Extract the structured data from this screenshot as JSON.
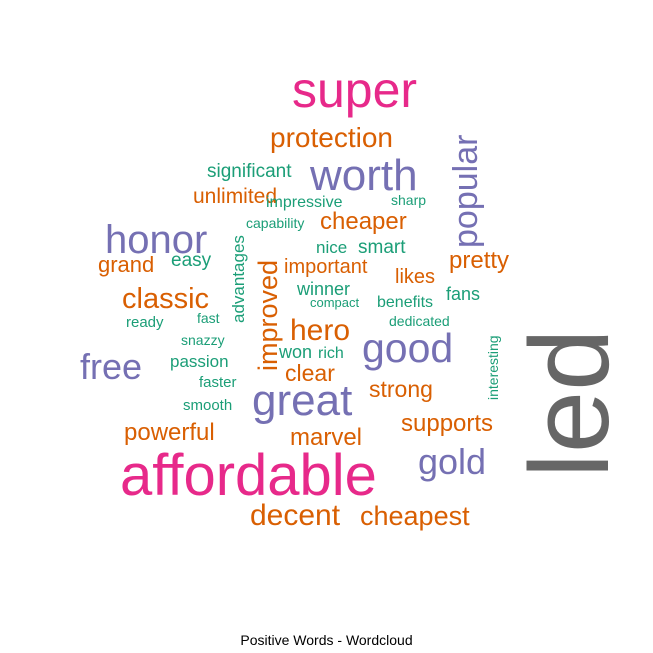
{
  "chart_data": {
    "type": "wordcloud",
    "caption": "Positive Words - Wordcloud",
    "palette": {
      "magenta": "#E7298A",
      "purple": "#7570B3",
      "orange": "#D95F02",
      "teal": "#1B9E77",
      "gray": "#666666"
    },
    "words": [
      {
        "text": "led",
        "color": "gray"
      },
      {
        "text": "affordable",
        "color": "magenta"
      },
      {
        "text": "super",
        "color": "magenta"
      },
      {
        "text": "great",
        "color": "purple"
      },
      {
        "text": "good",
        "color": "purple"
      },
      {
        "text": "worth",
        "color": "purple"
      },
      {
        "text": "honor",
        "color": "purple"
      },
      {
        "text": "gold",
        "color": "purple"
      },
      {
        "text": "free",
        "color": "purple"
      },
      {
        "text": "popular",
        "color": "purple"
      },
      {
        "text": "decent",
        "color": "orange"
      },
      {
        "text": "cheapest",
        "color": "orange"
      },
      {
        "text": "protection",
        "color": "orange"
      },
      {
        "text": "hero",
        "color": "orange"
      },
      {
        "text": "classic",
        "color": "orange"
      },
      {
        "text": "improved",
        "color": "orange"
      },
      {
        "text": "cheaper",
        "color": "orange"
      },
      {
        "text": "pretty",
        "color": "orange"
      },
      {
        "text": "supports",
        "color": "orange"
      },
      {
        "text": "marvel",
        "color": "orange"
      },
      {
        "text": "powerful",
        "color": "orange"
      },
      {
        "text": "strong",
        "color": "orange"
      },
      {
        "text": "clear",
        "color": "orange"
      },
      {
        "text": "unlimited",
        "color": "orange"
      },
      {
        "text": "grand",
        "color": "orange"
      },
      {
        "text": "important",
        "color": "orange"
      },
      {
        "text": "likes",
        "color": "orange"
      },
      {
        "text": "significant",
        "color": "teal"
      },
      {
        "text": "easy",
        "color": "teal"
      },
      {
        "text": "advantages",
        "color": "teal"
      },
      {
        "text": "smart",
        "color": "teal"
      },
      {
        "text": "nice",
        "color": "teal"
      },
      {
        "text": "winner",
        "color": "teal"
      },
      {
        "text": "fans",
        "color": "teal"
      },
      {
        "text": "won",
        "color": "teal"
      },
      {
        "text": "rich",
        "color": "teal"
      },
      {
        "text": "benefits",
        "color": "teal"
      },
      {
        "text": "passion",
        "color": "teal"
      },
      {
        "text": "impressive",
        "color": "teal"
      },
      {
        "text": "faster",
        "color": "teal"
      },
      {
        "text": "smooth",
        "color": "teal"
      },
      {
        "text": "sharp",
        "color": "teal"
      },
      {
        "text": "ready",
        "color": "teal"
      },
      {
        "text": "dedicated",
        "color": "teal"
      },
      {
        "text": "snazzy",
        "color": "teal"
      },
      {
        "text": "fast",
        "color": "teal"
      },
      {
        "text": "capability",
        "color": "teal"
      },
      {
        "text": "compact",
        "color": "teal"
      },
      {
        "text": "interesting",
        "color": "teal"
      }
    ]
  }
}
